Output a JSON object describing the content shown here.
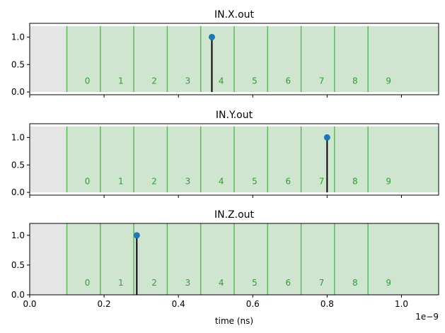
{
  "chart_data": {
    "type": "stem",
    "xlabel": "time (ns)",
    "x_scale_label": "1e−9",
    "xlim": [
      0,
      1.1e-09
    ],
    "x_ticks": [
      0,
      2e-10,
      4e-10,
      6e-10,
      8e-10,
      1e-09
    ],
    "x_tick_labels": [
      "0.0",
      "0.2",
      "0.4",
      "0.6",
      "0.8",
      "1.0"
    ],
    "bin_edges": [
      1e-10,
      1.9e-10,
      2.8e-10,
      3.7e-10,
      4.6e-10,
      5.5e-10,
      6.4e-10,
      7.3e-10,
      8.2e-10,
      9.1e-10
    ],
    "bins_end": 1.1e-09,
    "bin_labels": [
      "0",
      "1",
      "2",
      "3",
      "4",
      "5",
      "6",
      "7",
      "8",
      "9"
    ],
    "colors": {
      "gray_region": "#e5e5e5",
      "bin_fill": "#cfe5cf",
      "bin_edge": "#5cb85c",
      "bin_label": "#2ca02c",
      "stem": "#000000",
      "marker": "#1f77b4"
    },
    "panels": [
      {
        "title": "IN.X.out",
        "ylim": [
          -0.05,
          1.25
        ],
        "y_ticks": [
          0,
          0.5,
          1.0
        ],
        "y_tick_labels": [
          "0.0",
          "0.5",
          "1.0"
        ],
        "points": [
          {
            "x": 4.9e-10,
            "y": 1.0
          }
        ]
      },
      {
        "title": "IN.Y.out",
        "ylim": [
          -0.05,
          1.25
        ],
        "y_ticks": [
          0,
          0.5,
          1.0
        ],
        "y_tick_labels": [
          "0.0",
          "0.5",
          "1.0"
        ],
        "points": [
          {
            "x": 8e-10,
            "y": 1.0
          }
        ]
      },
      {
        "title": "IN.Z.out",
        "ylim": [
          0,
          1.2
        ],
        "y_ticks": [
          0,
          0.5,
          1.0
        ],
        "y_tick_labels": [
          "0.0",
          "0.5",
          "1.0"
        ],
        "points": [
          {
            "x": 2.88e-10,
            "y": 1.0
          }
        ]
      }
    ]
  }
}
